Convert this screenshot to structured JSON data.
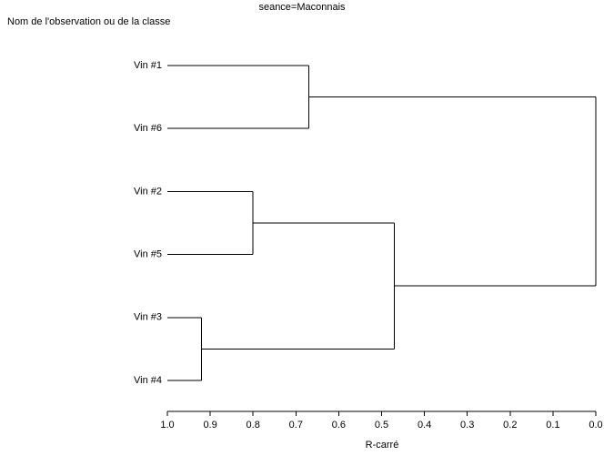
{
  "chart_data": {
    "type": "dendrogram",
    "title": "seance=Maconnais",
    "subtitle": "Nom de l'observation ou de la classe",
    "x_label": "R-carré",
    "xlim": [
      1,
      0
    ],
    "xticks": [
      {
        "value": 1,
        "label": "1.0"
      },
      0.9,
      0.8,
      0.7,
      0.6,
      0.5,
      0.4,
      0.3,
      0.2,
      0.1,
      {
        "value": 0,
        "label": "0.0"
      }
    ],
    "color": "#000000",
    "tree": {
      "height": 0,
      "children": [
        {
          "height": 0.67,
          "children": [
            {
              "label": "Vin #1"
            },
            {
              "label": "Vin #6"
            }
          ]
        },
        {
          "height": 0.47,
          "children": [
            {
              "height": 0.8,
              "children": [
                {
                  "label": "Vin #2"
                },
                {
                  "label": "Vin #5"
                }
              ]
            },
            {
              "height": 0.92,
              "children": [
                {
                  "label": "Vin #3"
                },
                {
                  "label": "Vin #4"
                }
              ]
            }
          ]
        }
      ]
    }
  }
}
